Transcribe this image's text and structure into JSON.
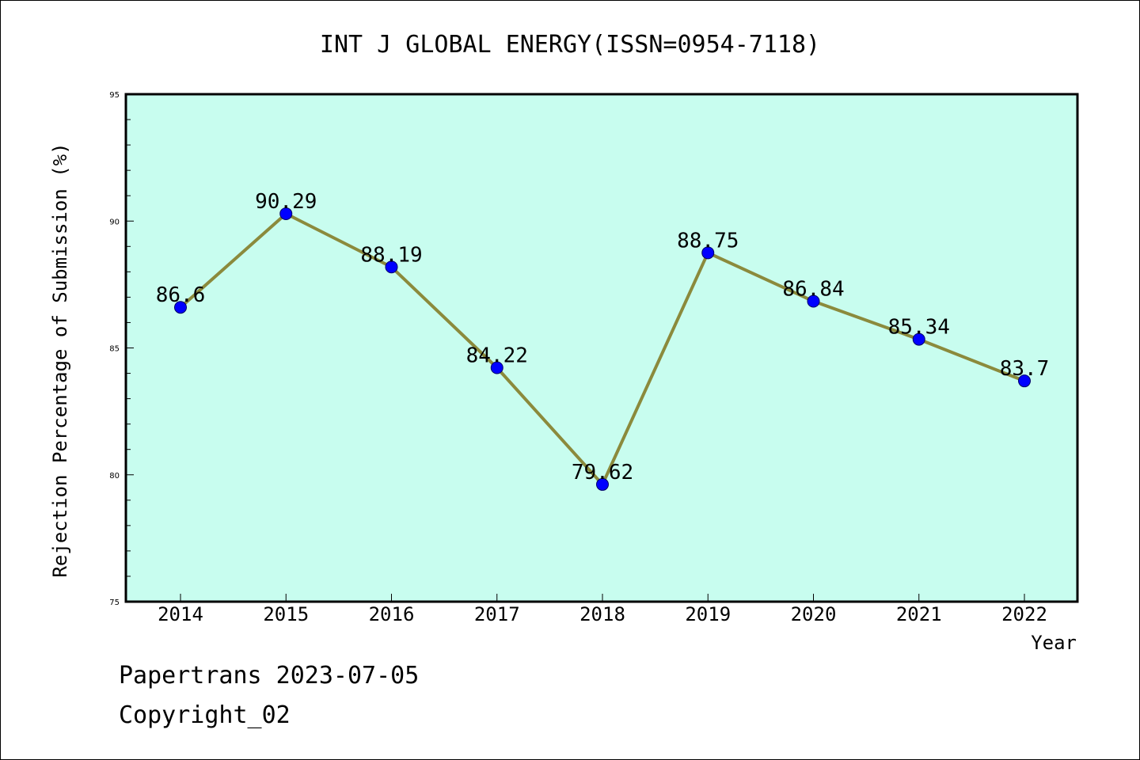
{
  "chart_data": {
    "type": "line",
    "title": "INT J GLOBAL ENERGY(ISSN=0954-7118)",
    "xlabel": "Year",
    "ylabel": "Rejection Percentage of Submission (%)",
    "categories": [
      "2014",
      "2015",
      "2016",
      "2017",
      "2018",
      "2019",
      "2020",
      "2021",
      "2022"
    ],
    "values": [
      86.6,
      90.29,
      88.19,
      84.22,
      79.62,
      88.75,
      86.84,
      85.34,
      83.7
    ],
    "data_labels": [
      "86.6",
      "90.29",
      "88.19",
      "84.22",
      "79.62",
      "88.75",
      "86.84",
      "85.34",
      "83.7"
    ],
    "ylim": [
      75,
      95
    ],
    "y_ticks": [
      "75",
      "80",
      "85",
      "90",
      "95"
    ],
    "grid": false,
    "colors": {
      "plot_background": "#c8fdef",
      "line": "#8b8a3c",
      "marker": "#0000ff"
    }
  },
  "footer": {
    "line1": "Papertrans 2023-07-05",
    "line2": "Copyright_02"
  }
}
